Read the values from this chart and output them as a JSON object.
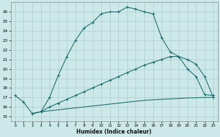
{
  "xlabel": "Humidex (Indice chaleur)",
  "bg_color": "#cce8e8",
  "grid_color": "#aacccc",
  "line_color": "#1a6b6b",
  "xlim": [
    -0.5,
    23.5
  ],
  "ylim": [
    14.5,
    27.0
  ],
  "yticks": [
    15,
    16,
    17,
    18,
    19,
    20,
    21,
    22,
    23,
    24,
    25,
    26
  ],
  "xticks": [
    0,
    1,
    2,
    3,
    4,
    5,
    6,
    7,
    8,
    9,
    10,
    11,
    12,
    13,
    14,
    15,
    16,
    17,
    18,
    19,
    20,
    21,
    22,
    23
  ],
  "line1_x": [
    0,
    1,
    2,
    3,
    4,
    5,
    6,
    7,
    8,
    9,
    10,
    11,
    12,
    13,
    14,
    15,
    16,
    17,
    18,
    19,
    20,
    21,
    22,
    23
  ],
  "line1_y": [
    17.2,
    16.5,
    15.3,
    15.5,
    17.0,
    19.3,
    21.3,
    23.0,
    24.3,
    24.9,
    25.8,
    26.0,
    26.0,
    26.5,
    26.3,
    26.0,
    25.8,
    23.3,
    21.8,
    21.3,
    20.0,
    19.2,
    17.3,
    17.2
  ],
  "line2_x": [
    2,
    3,
    4,
    5,
    6,
    7,
    8,
    9,
    10,
    11,
    12,
    13,
    14,
    15,
    16,
    17,
    18,
    19,
    20,
    21,
    22,
    23
  ],
  "line2_y": [
    15.3,
    15.5,
    16.0,
    16.4,
    16.8,
    17.2,
    17.6,
    18.0,
    18.4,
    18.8,
    19.2,
    19.6,
    20.0,
    20.4,
    20.7,
    21.0,
    21.3,
    21.3,
    21.0,
    20.5,
    19.2,
    17.0
  ],
  "line3_x": [
    2,
    3,
    4,
    5,
    6,
    7,
    8,
    9,
    10,
    11,
    12,
    13,
    14,
    15,
    16,
    17,
    18,
    19,
    20,
    21,
    22,
    23
  ],
  "line3_y": [
    15.3,
    15.5,
    15.6,
    15.7,
    15.8,
    15.9,
    16.0,
    16.1,
    16.2,
    16.3,
    16.4,
    16.5,
    16.6,
    16.7,
    16.75,
    16.8,
    16.85,
    16.9,
    16.95,
    16.97,
    17.0,
    17.0
  ]
}
